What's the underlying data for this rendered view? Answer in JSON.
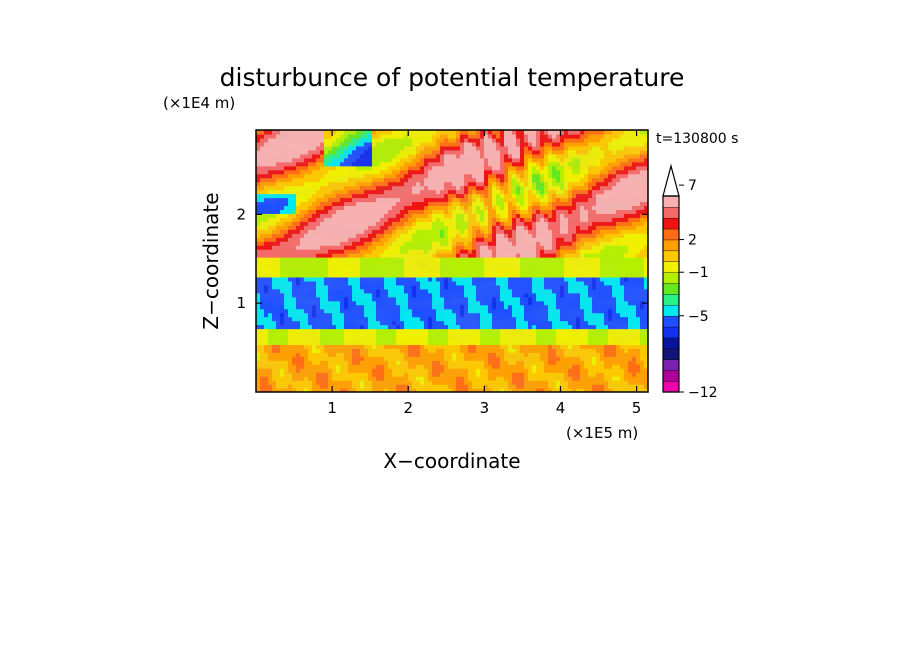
{
  "chart_data": {
    "type": "heatmap",
    "title": "disturbunce of potential temperature",
    "xlabel": "X−coordinate",
    "ylabel": "Z−coordinate",
    "x_unit": "(×1E5 m)",
    "y_unit": "(×1E4 m)",
    "time_label": "t=130800 s",
    "xlim": [
      0,
      5.15
    ],
    "ylim": [
      0,
      2.95
    ],
    "x_ticks": [
      "1",
      "2",
      "3",
      "4",
      "5"
    ],
    "y_ticks": [
      "1",
      "2"
    ],
    "x_tick_values": [
      1,
      2,
      3,
      4,
      5
    ],
    "y_tick_values": [
      1,
      2
    ],
    "colorbar": {
      "levels": [
        -12,
        -11,
        -10,
        -9,
        -8,
        -7,
        -6,
        -5,
        -4,
        -3,
        -2,
        -1,
        0,
        1,
        2,
        3,
        4,
        5,
        6,
        7,
        8,
        9,
        10
      ],
      "tick_labels": [
        "−12",
        "−5",
        "−1",
        "2",
        "7"
      ],
      "tick_values": [
        -12,
        -5,
        -1,
        2,
        7
      ],
      "colors": [
        "#ee00aa",
        "#b0009a",
        "#7a20b0",
        "#14147a",
        "#0a14a0",
        "#1230f0",
        "#1e50ff",
        "#00e8f0",
        "#2af08a",
        "#64e81e",
        "#b4f000",
        "#f0f000",
        "#fcc800",
        "#ffa000",
        "#ff6e14",
        "#ee1414",
        "#f46a6a",
        "#f8b0b0"
      ],
      "extend": "max"
    },
    "grid": false,
    "field_description_bands": [
      {
        "z_range": [
          0,
          0.55
        ],
        "value": 1
      },
      {
        "z_range": [
          0.55,
          0.7
        ],
        "value": -1
      },
      {
        "z_range": [
          0.7,
          1.3
        ],
        "value": -5
      },
      {
        "z_range": [
          1.3,
          1.5
        ],
        "value": -1
      },
      {
        "z_range": [
          1.5,
          2.95
        ],
        "value": 3
      }
    ]
  }
}
